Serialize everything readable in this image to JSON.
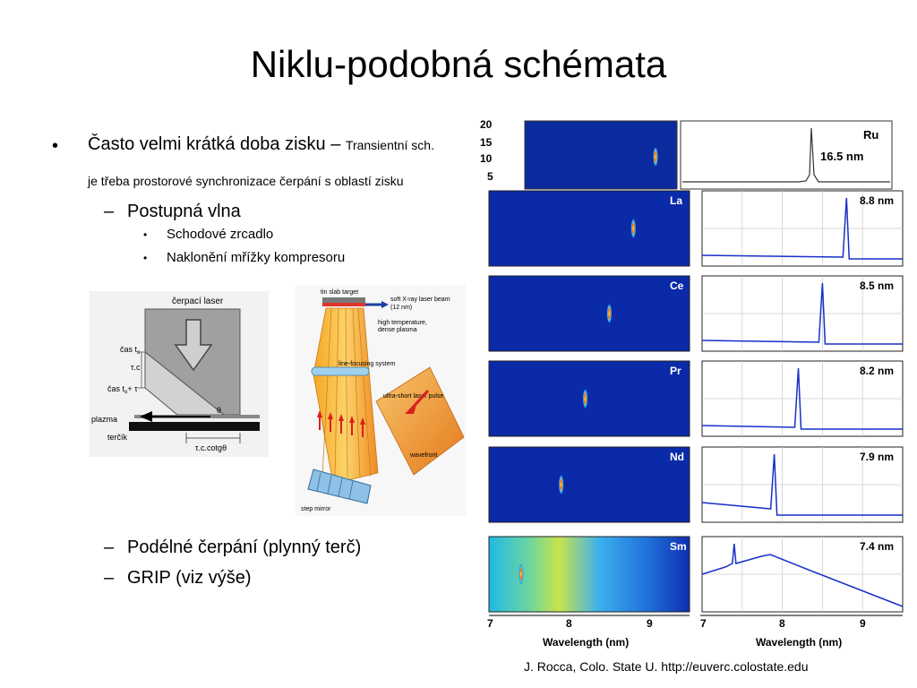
{
  "slide": {
    "title": "Niklu-podobná schémata",
    "bullets": {
      "b1_main": "Často velmi krátká doba zisku – ",
      "b1_small": "Transientní sch.",
      "b1_cont": "je třeba prostorové synchronizace čerpání s oblastí zisku",
      "b1_sub": "Postupná vlna",
      "b1_sub_items": [
        "Schodové zrcadlo",
        "Naklonění mřížky kompresoru"
      ],
      "b2": "Podélné čerpání (plynný terč)",
      "b3": "GRIP (viz výše)",
      "dash": "–",
      "dot": "•"
    },
    "credit": "J. Rocca, Colo. State U. http://euverc.colostate.edu"
  },
  "figure_left": {
    "labels": {
      "pump": "čerpací laser",
      "time1": "čas t",
      "time1_sub": "o",
      "tc": "τ.c",
      "time2": "čas t",
      "time2_sub": "o",
      "time2_suffix": "+ τ",
      "plasma": "plazma",
      "target": "terčík",
      "theta": "θ",
      "bottom": "τ.c.cotgθ"
    }
  },
  "figure_mid": {
    "labels": {
      "tin": "tin slab target",
      "beam": "soft X-ray laser beam",
      "beam2": "(12 nm)",
      "plasma1": "high temperature,",
      "plasma2": "dense plasma",
      "focus": "line-focusing system",
      "pulse": "ultra-short laser pulse",
      "wavefront": "wavefront",
      "mirror": "step mirror"
    }
  },
  "figure_right": {
    "top_y_ticks": [
      "20",
      "15",
      "10",
      "5"
    ],
    "x_ticks": [
      "7",
      "8",
      "9"
    ],
    "x_label": "Wavelength (nm)",
    "rows": [
      {
        "element": "Ru",
        "wavelength": "16.5 nm"
      },
      {
        "element": "La",
        "wavelength": "8.8 nm"
      },
      {
        "element": "Ce",
        "wavelength": "8.5 nm"
      },
      {
        "element": "Pr",
        "wavelength": "8.2 nm"
      },
      {
        "element": "Nd",
        "wavelength": "7.9 nm"
      },
      {
        "element": "Sm",
        "wavelength": "7.4 nm"
      }
    ]
  },
  "chart_data": {
    "type": "line",
    "xlabel": "Wavelength (nm)",
    "xlim": [
      7,
      9.5
    ],
    "series": [
      {
        "name": "La",
        "peak_nm": 8.8
      },
      {
        "name": "Ce",
        "peak_nm": 8.5
      },
      {
        "name": "Pr",
        "peak_nm": 8.2
      },
      {
        "name": "Nd",
        "peak_nm": 7.9
      },
      {
        "name": "Sm",
        "peak_nm": 7.4
      }
    ]
  }
}
